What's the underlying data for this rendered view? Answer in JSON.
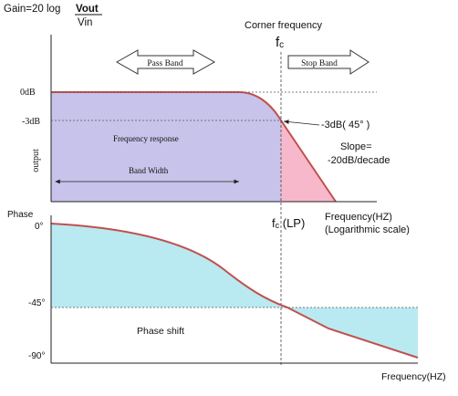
{
  "magnitude": {
    "gain_prefix": "Gain=20 log",
    "gain_fraction_top": "Vout",
    "gain_fraction_bottom": "Vin",
    "corner_frequency_label": "Corner frequency",
    "fc_label": "f",
    "fc_sub": "c",
    "pass_band_label": "Pass Band",
    "stop_band_label": "Stop Band",
    "tick_0db": "0dB",
    "tick_3db": "-3dB",
    "ylabel": "output",
    "frequency_response_label": "Frequency response",
    "bandwidth_label": "Band Width",
    "corner_annotation": "-3dB( 45° )",
    "slope_label": "Slope=",
    "slope_value": "-20dB/decade",
    "fc_lp_prefix": "f",
    "fc_lp_sub": "c",
    "fc_lp_suffix": " (LP)",
    "xlabel_line1": "Frequency(HZ)",
    "xlabel_line2": "(Logarithmic scale)"
  },
  "phase": {
    "ylabel": "Phase",
    "tick_0": "0°",
    "tick_45": "-45°",
    "tick_90": "-90°",
    "phase_shift_label": "Phase shift",
    "xlabel": "Frequency(HZ)"
  },
  "colors": {
    "pass_fill": "#c7c3ea",
    "stop_fill": "#f7b8cc",
    "phase_fill": "#b9e9f1",
    "curve": "#c0504d"
  }
}
